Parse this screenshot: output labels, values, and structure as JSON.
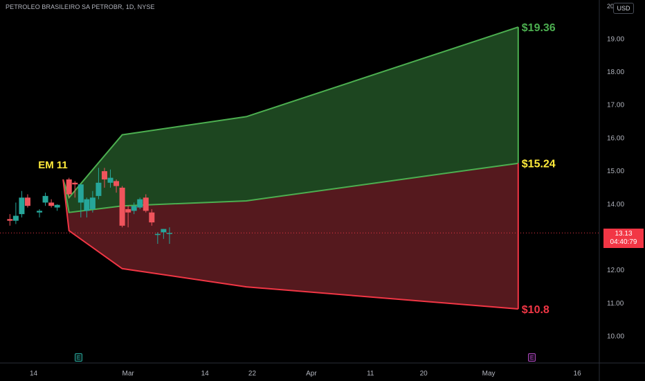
{
  "symbol_label": "PETROLEO BRASILEIRO SA PETROBR, 1D, NYSE",
  "currency_button": "USD",
  "price_axis_top_clip": "20",
  "last_price": "13.13",
  "countdown": "04:40:79",
  "earnings_markers": [
    "E",
    "E"
  ],
  "colors": {
    "background": "#000000",
    "up": "#26a69a",
    "down": "#f0545c",
    "upper_fill": "#1f4a22",
    "lower_fill": "#5a1a20",
    "upper_line": "#4caf50",
    "lower_line": "#f23645",
    "label_green": "#4caf50",
    "label_yellow": "#ffeb3b",
    "label_red": "#f23645"
  },
  "chart_data": {
    "type": "candlestick",
    "y_axis": {
      "ticks": [
        "10.00",
        "11.00",
        "12.00",
        "13.00",
        "14.00",
        "15.00",
        "16.00",
        "17.00",
        "18.00",
        "19.00"
      ],
      "range": [
        9.2,
        20.0
      ]
    },
    "x_axis": {
      "ticks": [
        {
          "label": "14",
          "day": 0
        },
        {
          "label": "Mar",
          "day": 16
        },
        {
          "label": "14",
          "day": 29
        },
        {
          "label": "22",
          "day": 37
        },
        {
          "label": "Apr",
          "day": 47
        },
        {
          "label": "11",
          "day": 57
        },
        {
          "label": "20",
          "day": 66
        },
        {
          "label": "May",
          "day": 77
        },
        {
          "label": "16",
          "day": 92
        }
      ]
    },
    "candles": [
      {
        "day": -4,
        "o": 13.55,
        "h": 13.7,
        "l": 13.35,
        "c": 13.5
      },
      {
        "day": -3,
        "o": 13.5,
        "h": 14.05,
        "l": 13.4,
        "c": 13.65
      },
      {
        "day": -2,
        "o": 13.7,
        "h": 14.4,
        "l": 13.6,
        "c": 14.2
      },
      {
        "day": -1,
        "o": 14.2,
        "h": 14.3,
        "l": 13.9,
        "c": 13.95
      },
      {
        "day": 1,
        "o": 13.75,
        "h": 13.85,
        "l": 13.6,
        "c": 13.8
      },
      {
        "day": 2,
        "o": 14.05,
        "h": 14.35,
        "l": 13.95,
        "c": 14.25
      },
      {
        "day": 3,
        "o": 14.05,
        "h": 14.15,
        "l": 13.9,
        "c": 13.95
      },
      {
        "day": 4,
        "o": 13.9,
        "h": 14.0,
        "l": 13.8,
        "c": 13.98
      },
      {
        "day": 6,
        "o": 14.75,
        "h": 14.8,
        "l": 14.2,
        "c": 14.3
      },
      {
        "day": 7,
        "o": 14.65,
        "h": 14.7,
        "l": 14.2,
        "c": 14.6
      },
      {
        "day": 8,
        "o": 14.05,
        "h": 14.55,
        "l": 13.6,
        "c": 14.6
      },
      {
        "day": 9,
        "o": 13.8,
        "h": 14.2,
        "l": 13.6,
        "c": 14.15
      },
      {
        "day": 10,
        "o": 13.85,
        "h": 14.4,
        "l": 13.75,
        "c": 14.2
      },
      {
        "day": 11,
        "o": 14.25,
        "h": 15.1,
        "l": 14.15,
        "c": 14.65
      },
      {
        "day": 12,
        "o": 15.0,
        "h": 15.1,
        "l": 14.5,
        "c": 14.75
      },
      {
        "day": 13,
        "o": 14.65,
        "h": 15.05,
        "l": 14.5,
        "c": 14.8
      },
      {
        "day": 14,
        "o": 14.7,
        "h": 14.75,
        "l": 14.35,
        "c": 14.55
      },
      {
        "day": 15,
        "o": 14.5,
        "h": 14.55,
        "l": 13.3,
        "c": 13.35
      },
      {
        "day": 16,
        "o": 13.85,
        "h": 13.95,
        "l": 13.3,
        "c": 13.75
      },
      {
        "day": 17,
        "o": 13.8,
        "h": 14.05,
        "l": 13.7,
        "c": 13.95
      },
      {
        "day": 18,
        "o": 13.9,
        "h": 14.2,
        "l": 13.85,
        "c": 14.15
      },
      {
        "day": 19,
        "o": 14.2,
        "h": 14.3,
        "l": 13.75,
        "c": 13.8
      },
      {
        "day": 20,
        "o": 13.75,
        "h": 13.85,
        "l": 13.35,
        "c": 13.45
      },
      {
        "day": 21,
        "o": 13.1,
        "h": 13.15,
        "l": 12.8,
        "c": 13.1
      },
      {
        "day": 22,
        "o": 13.15,
        "h": 13.25,
        "l": 12.95,
        "c": 13.25
      },
      {
        "day": 23,
        "o": 13.13,
        "h": 13.3,
        "l": 12.8,
        "c": 13.13
      }
    ],
    "expected_move": {
      "label": "EM 11",
      "upper": [
        {
          "day": 5,
          "v": 14.75
        },
        {
          "day": 6,
          "v": 14.2
        },
        {
          "day": 15,
          "v": 16.1
        },
        {
          "day": 36,
          "v": 16.65
        },
        {
          "day": 82,
          "v": 19.36
        }
      ],
      "mid": [
        {
          "day": 5,
          "v": 14.75
        },
        {
          "day": 6,
          "v": 13.75
        },
        {
          "day": 15,
          "v": 13.95
        },
        {
          "day": 36,
          "v": 14.1
        },
        {
          "day": 82,
          "v": 15.24
        }
      ],
      "lower": [
        {
          "day": 5,
          "v": 14.75
        },
        {
          "day": 6,
          "v": 13.2
        },
        {
          "day": 15,
          "v": 12.05
        },
        {
          "day": 36,
          "v": 11.5
        },
        {
          "day": 82,
          "v": 10.83
        }
      ],
      "labels": [
        {
          "text": "$19.36",
          "v": 19.36,
          "color": "#4caf50"
        },
        {
          "text": "$15.24",
          "v": 15.24,
          "color": "#ffeb3b"
        },
        {
          "text": "$10.8",
          "v": 10.83,
          "color": "#f23645"
        }
      ]
    },
    "last_price": 13.13
  }
}
